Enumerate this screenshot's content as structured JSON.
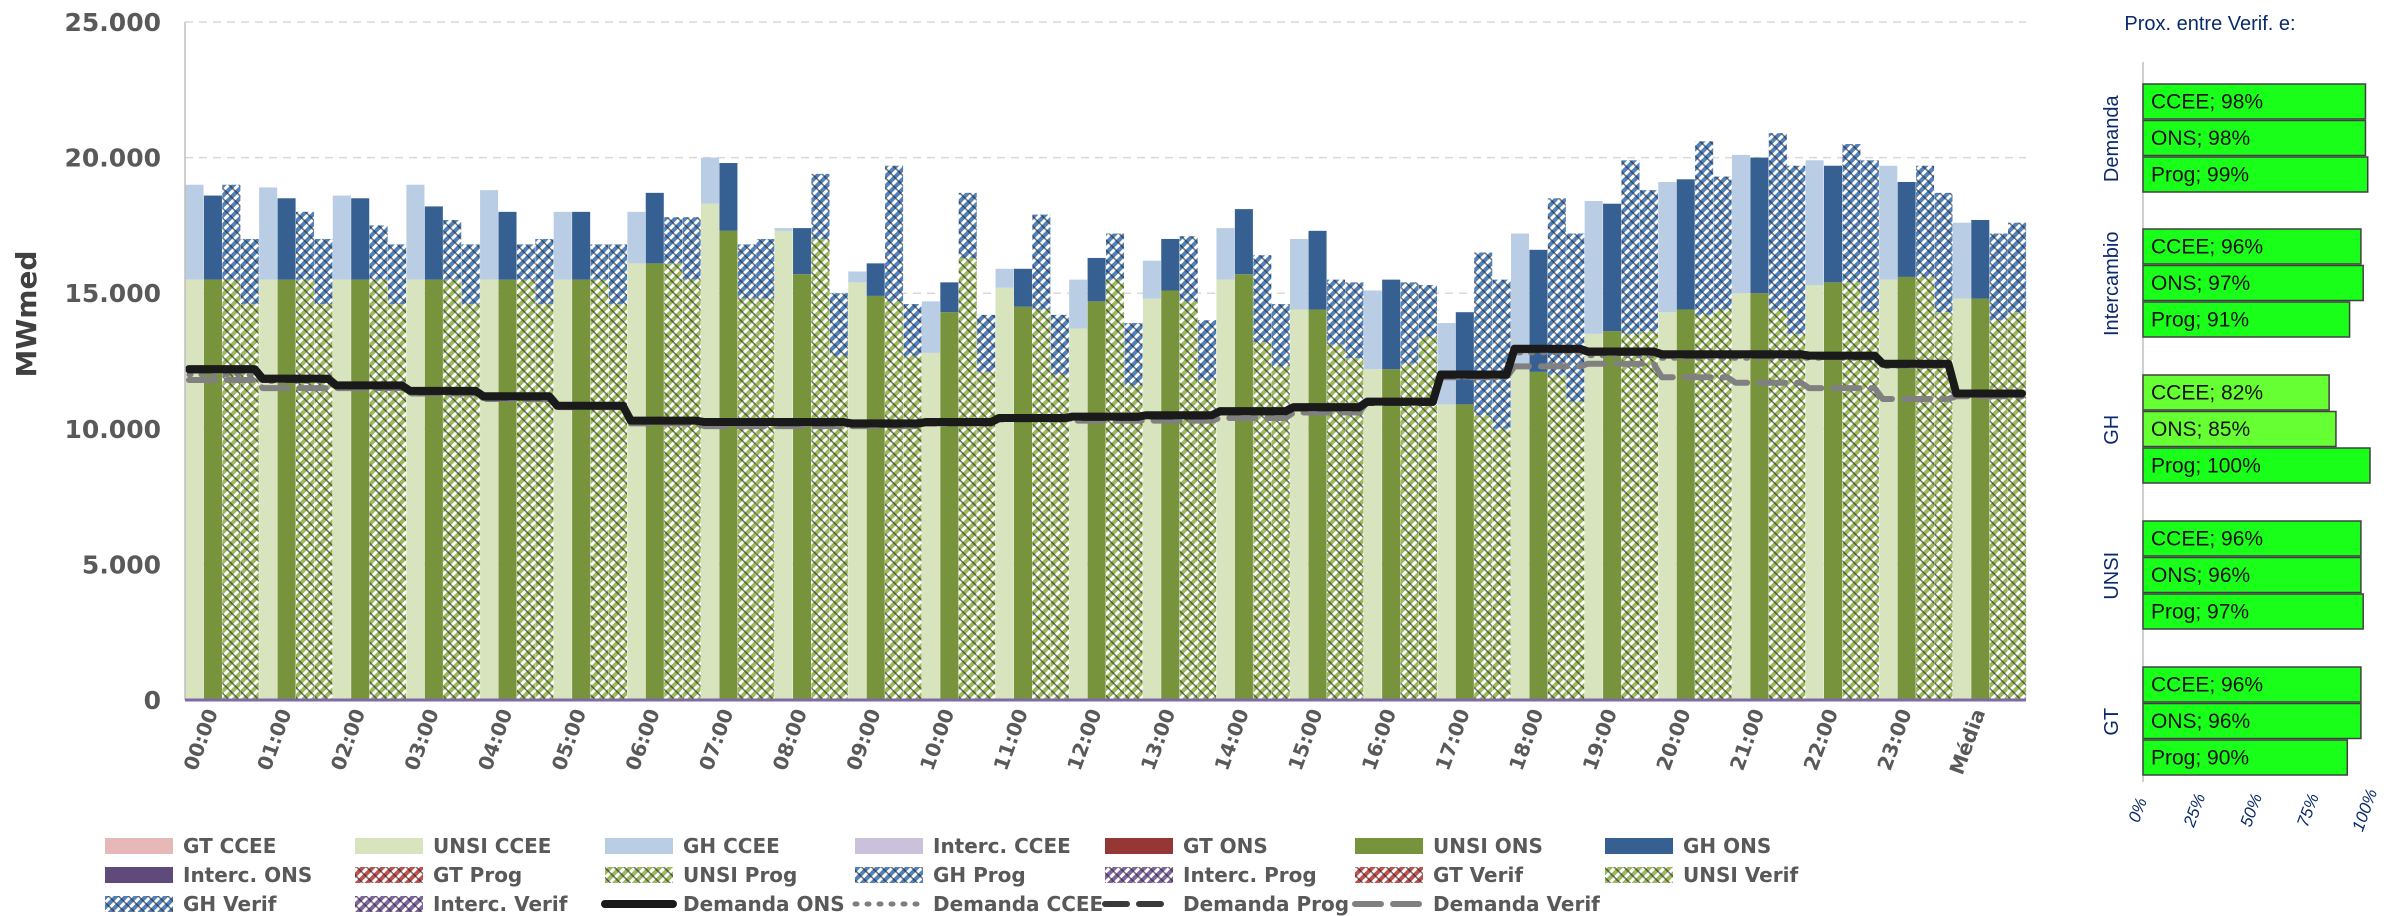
{
  "chart_data": [
    {
      "type": "bar",
      "title": "",
      "ylabel": "MWmed",
      "ylim": [
        0,
        25000
      ],
      "yticks": [
        "0",
        "5.000",
        "10.000",
        "15.000",
        "20.000",
        "25.000"
      ],
      "categories": [
        "00:00",
        "01:00",
        "02:00",
        "03:00",
        "04:00",
        "05:00",
        "06:00",
        "07:00",
        "08:00",
        "09:00",
        "10:00",
        "11:00",
        "12:00",
        "13:00",
        "14:00",
        "15:00",
        "16:00",
        "17:00",
        "18:00",
        "19:00",
        "20:00",
        "21:00",
        "22:00",
        "23:00",
        "Média"
      ],
      "grid": true,
      "legend_position": "bottom",
      "sub_bars": [
        "CCEE",
        "ONS",
        "Prog",
        "Verif"
      ],
      "series": [
        {
          "name": "GT CCEE",
          "color": "#e6b9b8",
          "pattern": "solid",
          "sub": "CCEE",
          "stack": "GT"
        },
        {
          "name": "UNSI CCEE",
          "color": "#d7e4bd",
          "pattern": "solid",
          "sub": "CCEE",
          "stack": "UNSI"
        },
        {
          "name": "GH CCEE",
          "color": "#b9cde5",
          "pattern": "solid",
          "sub": "CCEE",
          "stack": "GH"
        },
        {
          "name": "Interc. CCEE",
          "color": "#ccc1da",
          "pattern": "solid",
          "sub": "CCEE",
          "stack": "Interc"
        },
        {
          "name": "GT ONS",
          "color": "#953735",
          "pattern": "solid",
          "sub": "ONS",
          "stack": "GT"
        },
        {
          "name": "UNSI ONS",
          "color": "#77933c",
          "pattern": "solid",
          "sub": "ONS",
          "stack": "UNSI"
        },
        {
          "name": "GH ONS",
          "color": "#376092",
          "pattern": "solid",
          "sub": "ONS",
          "stack": "GH"
        },
        {
          "name": "Interc. ONS",
          "color": "#604a7b",
          "pattern": "solid",
          "sub": "ONS",
          "stack": "Interc"
        },
        {
          "name": "GT Prog",
          "color": "#c0504d",
          "pattern": "hatch",
          "sub": "Prog",
          "stack": "GT"
        },
        {
          "name": "UNSI Prog",
          "color": "#9bbb59",
          "pattern": "hatch",
          "sub": "Prog",
          "stack": "UNSI"
        },
        {
          "name": "GH Prog",
          "color": "#4f81bd",
          "pattern": "hatch",
          "sub": "Prog",
          "stack": "GH"
        },
        {
          "name": "Interc. Prog",
          "color": "#8064a2",
          "pattern": "hatch",
          "sub": "Prog",
          "stack": "Interc"
        },
        {
          "name": "GT Verif",
          "color": "#c0504d",
          "pattern": "hatch",
          "sub": "Verif",
          "stack": "GT"
        },
        {
          "name": "UNSI Verif",
          "color": "#9bbb59",
          "pattern": "hatch",
          "sub": "Verif",
          "stack": "UNSI"
        },
        {
          "name": "GH Verif",
          "color": "#4f81bd",
          "pattern": "hatch",
          "sub": "Verif",
          "stack": "GH"
        },
        {
          "name": "Interc. Verif",
          "color": "#8064a2",
          "pattern": "hatch",
          "sub": "Verif",
          "stack": "Interc"
        }
      ],
      "stacks": {
        "UNSI": {
          "CCEE": [
            15500,
            15500,
            15500,
            15500,
            15500,
            15500,
            16100,
            18300,
            17300,
            15400,
            12800,
            15200,
            13700,
            14800,
            15500,
            14400,
            12200,
            10900,
            12200,
            13500,
            14300,
            15000,
            15300,
            15500,
            14800
          ],
          "ONS": [
            15500,
            15500,
            15500,
            15500,
            15500,
            15500,
            16100,
            17300,
            15700,
            14900,
            14300,
            14500,
            14700,
            15100,
            15700,
            14400,
            12200,
            10900,
            12100,
            13600,
            14400,
            15000,
            15400,
            15600,
            14800
          ],
          "Prog": [
            15500,
            15500,
            15500,
            15500,
            15500,
            15500,
            16100,
            14800,
            17000,
            14700,
            16300,
            14400,
            15500,
            14700,
            13200,
            13100,
            12400,
            10500,
            12000,
            13500,
            14200,
            14400,
            15400,
            15600,
            14000
          ],
          "Verif": [
            14600,
            14600,
            14600,
            14600,
            14600,
            14600,
            15500,
            14800,
            12700,
            12700,
            12100,
            12000,
            11600,
            11800,
            12300,
            12600,
            13400,
            10000,
            11000,
            13600,
            14400,
            13500,
            14300,
            14300,
            14300
          ]
        },
        "GH": {
          "CCEE": [
            3500,
            3400,
            3100,
            3500,
            3300,
            2500,
            1900,
            1700,
            100,
            400,
            1900,
            700,
            1800,
            1400,
            1900,
            2600,
            2900,
            3000,
            5000,
            4900,
            4800,
            5100,
            4600,
            4200,
            2800
          ],
          "ONS": [
            3100,
            3000,
            3000,
            2700,
            2500,
            2500,
            2600,
            2500,
            1700,
            1200,
            1100,
            1400,
            1600,
            1900,
            2400,
            2900,
            3300,
            3400,
            4500,
            4700,
            4800,
            5000,
            4300,
            3500,
            2900
          ],
          "Prog": [
            3500,
            2500,
            2000,
            2200,
            1300,
            1300,
            1700,
            2000,
            2400,
            5000,
            2400,
            3500,
            1700,
            2400,
            3200,
            2400,
            3000,
            6000,
            6500,
            6400,
            6400,
            6500,
            5100,
            4100,
            3200
          ],
          "Verif": [
            2400,
            2400,
            2200,
            2200,
            2400,
            2200,
            2300,
            2200,
            2300,
            1900,
            2100,
            2200,
            2300,
            2200,
            2300,
            2800,
            1900,
            5500,
            6200,
            5200,
            4900,
            6200,
            5600,
            4400,
            3300
          ]
        }
      },
      "lines": [
        {
          "name": "Demanda ONS",
          "style": "solid",
          "color": "#1a1a1a",
          "values": [
            12200,
            11850,
            11600,
            11400,
            11200,
            10850,
            10300,
            10250,
            10250,
            10200,
            10250,
            10400,
            10450,
            10500,
            10650,
            10800,
            11000,
            12000,
            12950,
            12850,
            12750,
            12750,
            12700,
            12400,
            11300
          ]
        },
        {
          "name": "Demanda CCEE",
          "style": "dotted",
          "color": "#7f7f7f",
          "values": [
            12000,
            11750,
            11500,
            11300,
            11100,
            10800,
            10250,
            10200,
            10200,
            10150,
            10200,
            10350,
            10400,
            10450,
            10600,
            10750,
            10950,
            11900,
            12800,
            12700,
            12600,
            12600,
            12600,
            12300,
            11250
          ]
        },
        {
          "name": "Demanda Prog",
          "style": "dashed",
          "color": "#3a3a3a",
          "values": [
            12150,
            11800,
            11600,
            11350,
            11150,
            10850,
            10300,
            10250,
            10200,
            10150,
            10200,
            10350,
            10400,
            10450,
            10600,
            10750,
            10950,
            11950,
            12900,
            12800,
            12700,
            12700,
            12650,
            12350,
            11300
          ]
        },
        {
          "name": "Demanda Verif",
          "style": "longdash",
          "color": "#808080",
          "values": [
            11800,
            11500,
            11500,
            11300,
            11100,
            10800,
            10200,
            10100,
            10100,
            10100,
            10200,
            10400,
            10300,
            10300,
            10400,
            10600,
            11000,
            11900,
            12300,
            12400,
            11900,
            11700,
            11500,
            11100,
            11200
          ]
        }
      ]
    },
    {
      "type": "bar",
      "orientation": "horizontal",
      "title": "Prox. entre Verif. e:",
      "xlim": [
        0,
        100
      ],
      "xticks": [
        "0%",
        "25%",
        "50%",
        "75%",
        "100%"
      ],
      "groups": [
        {
          "name": "Demanda",
          "bars": [
            {
              "label": "CCEE; 98%",
              "value": 98
            },
            {
              "label": "ONS; 98%",
              "value": 98
            },
            {
              "label": "Prog; 99%",
              "value": 99
            }
          ]
        },
        {
          "name": "Intercambio",
          "bars": [
            {
              "label": "CCEE; 96%",
              "value": 96
            },
            {
              "label": "ONS; 97%",
              "value": 97
            },
            {
              "label": "Prog; 91%",
              "value": 91
            }
          ]
        },
        {
          "name": "GH",
          "bars": [
            {
              "label": "CCEE; 82%",
              "value": 82
            },
            {
              "label": "ONS; 85%",
              "value": 85
            },
            {
              "label": "Prog; 100%",
              "value": 100
            }
          ]
        },
        {
          "name": "UNSI",
          "bars": [
            {
              "label": "CCEE; 96%",
              "value": 96
            },
            {
              "label": "ONS; 96%",
              "value": 96
            },
            {
              "label": "Prog; 97%",
              "value": 97
            }
          ]
        },
        {
          "name": "GT",
          "bars": [
            {
              "label": "CCEE; 96%",
              "value": 96
            },
            {
              "label": "ONS; 96%",
              "value": 96
            },
            {
              "label": "Prog; 90%",
              "value": 90
            }
          ]
        }
      ],
      "colors": {
        "high": "#1aff1a",
        "mid": "#66ff33",
        "border": "#404040"
      }
    }
  ]
}
